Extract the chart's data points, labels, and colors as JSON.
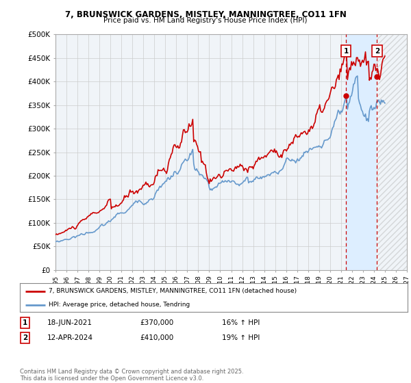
{
  "title": "7, BRUNSWICK GARDENS, MISTLEY, MANNINGTREE, CO11 1FN",
  "subtitle": "Price paid vs. HM Land Registry's House Price Index (HPI)",
  "xlim_years": [
    1995,
    2027
  ],
  "ylim": [
    0,
    500000
  ],
  "yticks": [
    0,
    50000,
    100000,
    150000,
    200000,
    250000,
    300000,
    350000,
    400000,
    450000,
    500000
  ],
  "ytick_labels": [
    "£0",
    "£50K",
    "£100K",
    "£150K",
    "£200K",
    "£250K",
    "£300K",
    "£350K",
    "£400K",
    "£450K",
    "£500K"
  ],
  "xticks": [
    1995,
    1996,
    1997,
    1998,
    1999,
    2000,
    2001,
    2002,
    2003,
    2004,
    2005,
    2006,
    2007,
    2008,
    2009,
    2010,
    2011,
    2012,
    2013,
    2014,
    2015,
    2016,
    2017,
    2018,
    2019,
    2020,
    2021,
    2022,
    2023,
    2024,
    2025,
    2026,
    2027
  ],
  "background_color": "#ffffff",
  "grid_color": "#cccccc",
  "chart_bg_color": "#f0f4f8",
  "legend_label_red": "7, BRUNSWICK GARDENS, MISTLEY, MANNINGTREE, CO11 1FN (detached house)",
  "legend_label_blue": "HPI: Average price, detached house, Tendring",
  "red_color": "#cc0000",
  "blue_color": "#6699cc",
  "purchase1_date": "18-JUN-2021",
  "purchase1_price": "£370,000",
  "purchase1_hpi": "16% ↑ HPI",
  "purchase1_year": 2021.46,
  "purchase1_value": 370000,
  "purchase2_date": "12-APR-2024",
  "purchase2_price": "£410,000",
  "purchase2_hpi": "19% ↑ HPI",
  "purchase2_year": 2024.28,
  "purchase2_value": 410000,
  "shade_color": "#ddeeff",
  "dashed_vline_color": "#cc0000",
  "copyright_text": "Contains HM Land Registry data © Crown copyright and database right 2025.\nThis data is licensed under the Open Government Licence v3.0."
}
